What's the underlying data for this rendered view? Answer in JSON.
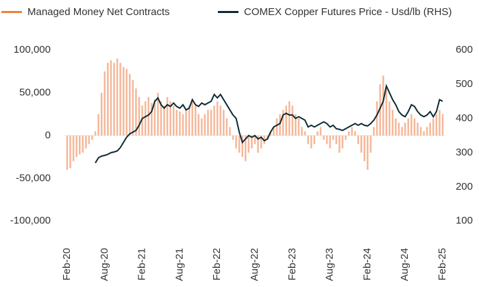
{
  "chart_data": {
    "type": "bar-line",
    "categories": [
      "Feb-20",
      null,
      null,
      null,
      null,
      null,
      null,
      null,
      null,
      null,
      null,
      null,
      "Aug-20",
      null,
      null,
      null,
      null,
      null,
      null,
      null,
      null,
      null,
      null,
      null,
      "Feb-21",
      null,
      null,
      null,
      null,
      null,
      null,
      null,
      null,
      null,
      null,
      null,
      "Aug-21",
      null,
      null,
      null,
      null,
      null,
      null,
      null,
      null,
      null,
      null,
      null,
      "Feb-22",
      null,
      null,
      null,
      null,
      null,
      null,
      null,
      null,
      null,
      null,
      null,
      "Aug-22",
      null,
      null,
      null,
      null,
      null,
      null,
      null,
      null,
      null,
      null,
      null,
      "Feb-23",
      null,
      null,
      null,
      null,
      null,
      null,
      null,
      null,
      null,
      null,
      null,
      "Aug-23",
      null,
      null,
      null,
      null,
      null,
      null,
      null,
      null,
      null,
      null,
      null,
      "Feb-24",
      null,
      null,
      null,
      null,
      null,
      null,
      null,
      null,
      null,
      null,
      null,
      "Aug-24",
      null,
      null,
      null,
      null,
      null,
      null,
      null,
      null,
      null,
      null,
      null,
      "Feb-25"
    ],
    "series": [
      {
        "name": "Managed Money Net Contracts",
        "color": "#f4b89a",
        "legend_color": "#f07f3c",
        "values": [
          -40000,
          -38000,
          -30000,
          -25000,
          -22000,
          -20000,
          -15000,
          -10000,
          -5000,
          5000,
          25000,
          50000,
          75000,
          85000,
          88000,
          85000,
          90000,
          85000,
          80000,
          78000,
          72000,
          65000,
          55000,
          45000,
          35000,
          40000,
          45000,
          38000,
          42000,
          50000,
          40000,
          35000,
          45000,
          40000,
          35000,
          30000,
          28000,
          25000,
          30000,
          35000,
          40000,
          35000,
          25000,
          20000,
          25000,
          30000,
          30000,
          35000,
          40000,
          35000,
          30000,
          20000,
          10000,
          -5000,
          -15000,
          -20000,
          -25000,
          -30000,
          -20000,
          -15000,
          -10000,
          -20000,
          -15000,
          -10000,
          -5000,
          5000,
          10000,
          20000,
          25000,
          30000,
          35000,
          40000,
          35000,
          25000,
          20000,
          10000,
          5000,
          -10000,
          -15000,
          -10000,
          5000,
          10000,
          -5000,
          -10000,
          -15000,
          -5000,
          -10000,
          -20000,
          -15000,
          -5000,
          5000,
          10000,
          5000,
          -10000,
          -20000,
          -30000,
          -40000,
          -20000,
          10000,
          40000,
          60000,
          70000,
          55000,
          40000,
          30000,
          20000,
          15000,
          10000,
          15000,
          20000,
          25000,
          20000,
          15000,
          10000,
          5000,
          10000,
          15000,
          20000,
          25000,
          30000,
          25000
        ]
      },
      {
        "name": "COMEX Copper Futures Price - Usd/lb (RHS)",
        "color": "#0d2b36",
        "axis": "y2",
        "values": [
          null,
          null,
          null,
          null,
          null,
          null,
          null,
          null,
          null,
          270,
          285,
          290,
          292,
          295,
          300,
          302,
          305,
          315,
          330,
          345,
          355,
          360,
          365,
          380,
          400,
          405,
          410,
          420,
          450,
          460,
          440,
          430,
          440,
          435,
          445,
          435,
          430,
          440,
          425,
          430,
          455,
          440,
          435,
          445,
          440,
          445,
          450,
          470,
          460,
          470,
          455,
          440,
          425,
          410,
          400,
          360,
          330,
          340,
          350,
          345,
          350,
          340,
          345,
          335,
          340,
          360,
          375,
          380,
          385,
          410,
          415,
          410,
          410,
          400,
          405,
          400,
          395,
          375,
          380,
          375,
          380,
          385,
          390,
          385,
          375,
          380,
          370,
          368,
          365,
          370,
          375,
          380,
          385,
          380,
          385,
          380,
          378,
          385,
          395,
          410,
          430,
          450,
          495,
          475,
          455,
          440,
          420,
          410,
          405,
          420,
          440,
          435,
          420,
          410,
          405,
          410,
          420,
          405,
          420,
          455,
          450
        ]
      }
    ],
    "ylim": [
      -125000,
      100000
    ],
    "yticks": [
      {
        "value": -100000,
        "label": "-100,000"
      },
      {
        "value": -50000,
        "label": "-50,000"
      },
      0,
      {
        "value": 50000,
        "label": "50,000"
      },
      {
        "value": 100000,
        "label": "100,000"
      }
    ],
    "y2lim": [
      37.5,
      600
    ],
    "y2ticks": [
      100,
      200,
      300,
      400,
      500,
      600
    ]
  }
}
